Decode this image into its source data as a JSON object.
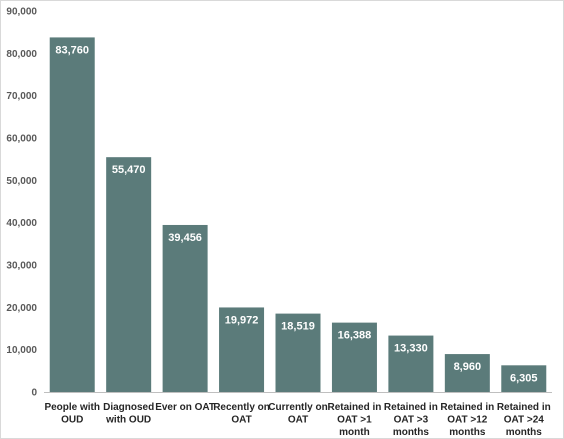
{
  "chart_data": {
    "type": "bar",
    "title": "",
    "xlabel": "",
    "ylabel": "",
    "ylim": [
      0,
      90000
    ],
    "yticks": [
      0,
      10000,
      20000,
      30000,
      40000,
      50000,
      60000,
      70000,
      80000,
      90000
    ],
    "ytick_labels": [
      "0",
      "10,000",
      "20,000",
      "30,000",
      "40,000",
      "50,000",
      "60,000",
      "70,000",
      "80,000",
      "90,000"
    ],
    "grid": false,
    "legend": "none",
    "bar_color": "#5b7b7a",
    "categories": [
      [
        "People with",
        "OUD"
      ],
      [
        "Diagnosed",
        "with OUD"
      ],
      [
        "Ever on OAT"
      ],
      [
        "Recently on",
        "OAT"
      ],
      [
        "Currently on",
        "OAT"
      ],
      [
        "Retained in",
        "OAT >1",
        "month"
      ],
      [
        "Retained in",
        "OAT >3",
        "months"
      ],
      [
        "Retained in",
        "OAT >12",
        "months"
      ],
      [
        "Retained in",
        "OAT >24",
        "months"
      ]
    ],
    "values": [
      83760,
      55470,
      39456,
      19972,
      18519,
      16388,
      13330,
      8960,
      6305
    ],
    "data_labels": [
      "83,760",
      "55,470",
      "39,456",
      "19,972",
      "18,519",
      "16,388",
      "13,330",
      "8,960",
      "6,305"
    ]
  }
}
